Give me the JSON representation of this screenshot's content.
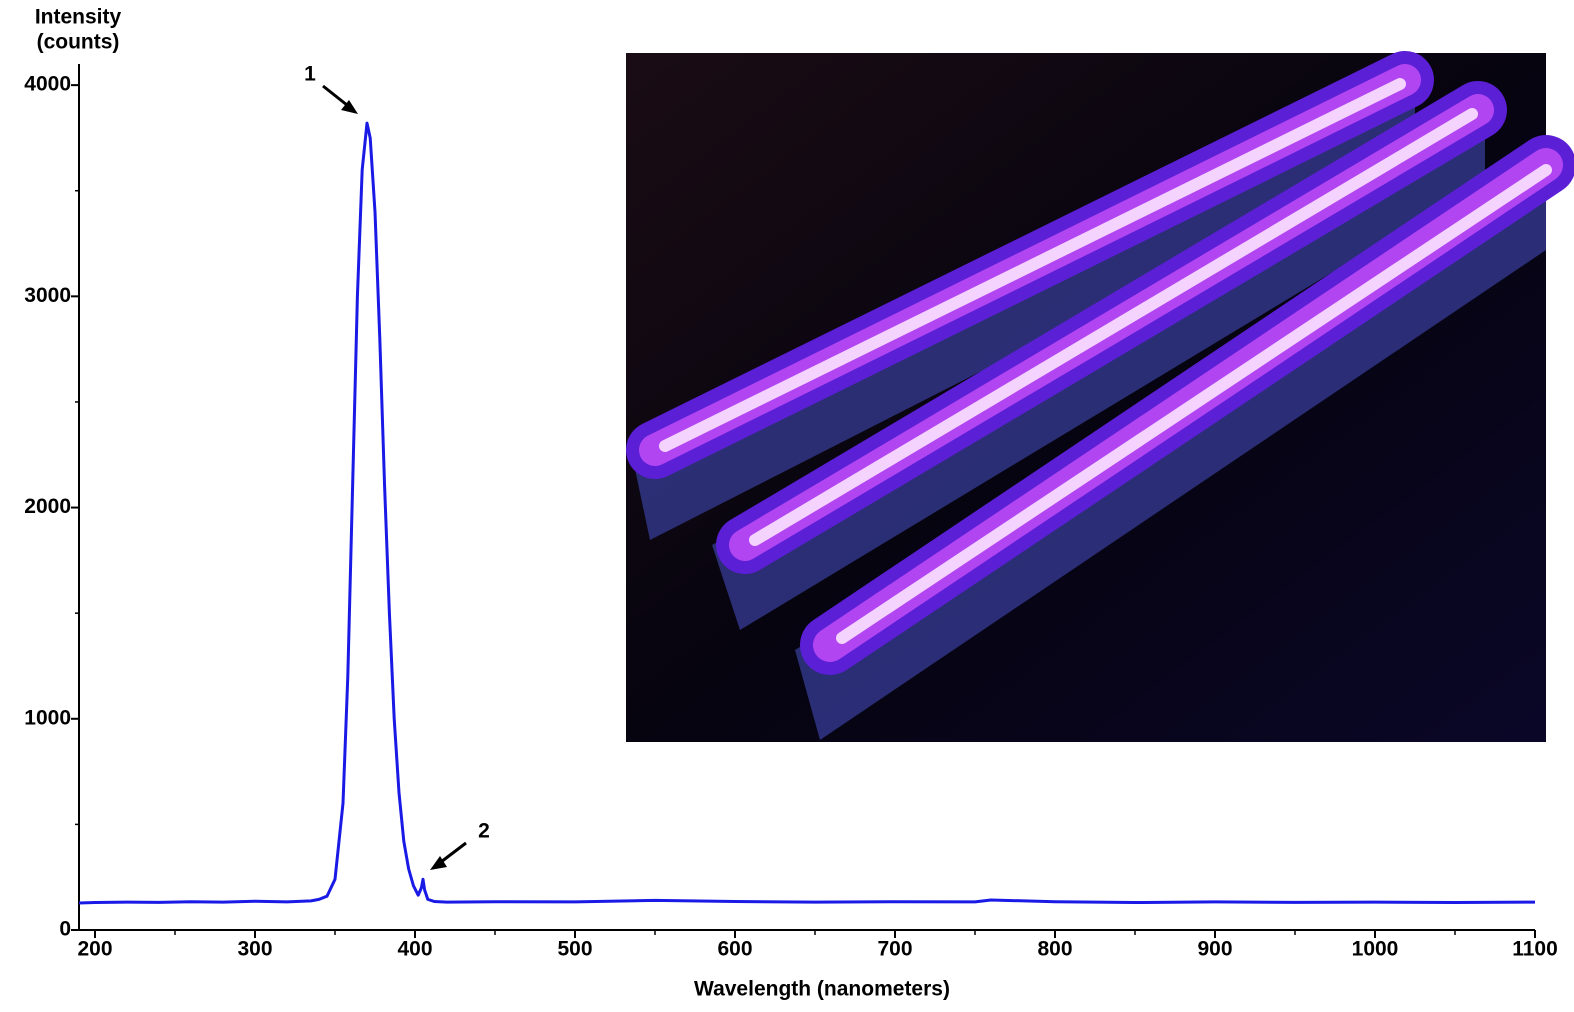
{
  "chart_data": {
    "type": "line",
    "ylabel": [
      "Intensity",
      "(counts)"
    ],
    "xlabel": "Wavelength (nanometers)",
    "annotations": [
      "1",
      "2"
    ],
    "xlim": [
      190,
      1100
    ],
    "ylim": [
      0,
      4100
    ],
    "xticks": [
      200,
      300,
      400,
      500,
      600,
      700,
      800,
      900,
      1000,
      1100
    ],
    "yticks": [
      0,
      1000,
      2000,
      3000,
      4000
    ],
    "xminorticks": [
      250,
      350,
      450,
      550,
      650,
      750,
      850,
      950,
      1050
    ],
    "yminorticks": [
      500,
      1500,
      2500,
      3500
    ],
    "series": [
      {
        "name": "Intensity",
        "color": "#1a1ae6",
        "x": [
          190,
          200,
          220,
          240,
          260,
          280,
          300,
          320,
          335,
          340,
          345,
          350,
          355,
          358,
          361,
          364,
          367,
          370,
          372,
          375,
          378,
          381,
          384,
          387,
          390,
          393,
          396,
          399,
          402,
          404,
          405,
          406,
          408,
          412,
          420,
          450,
          500,
          550,
          600,
          650,
          700,
          750,
          760,
          800,
          850,
          900,
          950,
          1000,
          1050,
          1100
        ],
        "values": [
          128,
          130,
          132,
          131,
          134,
          132,
          136,
          133,
          138,
          145,
          160,
          240,
          600,
          1200,
          2100,
          3000,
          3600,
          3820,
          3750,
          3400,
          2800,
          2100,
          1500,
          1000,
          650,
          420,
          290,
          210,
          165,
          200,
          240,
          190,
          145,
          135,
          132,
          134,
          133,
          140,
          135,
          132,
          134,
          133,
          142,
          134,
          130,
          133,
          131,
          132,
          130,
          132
        ]
      }
    ]
  }
}
